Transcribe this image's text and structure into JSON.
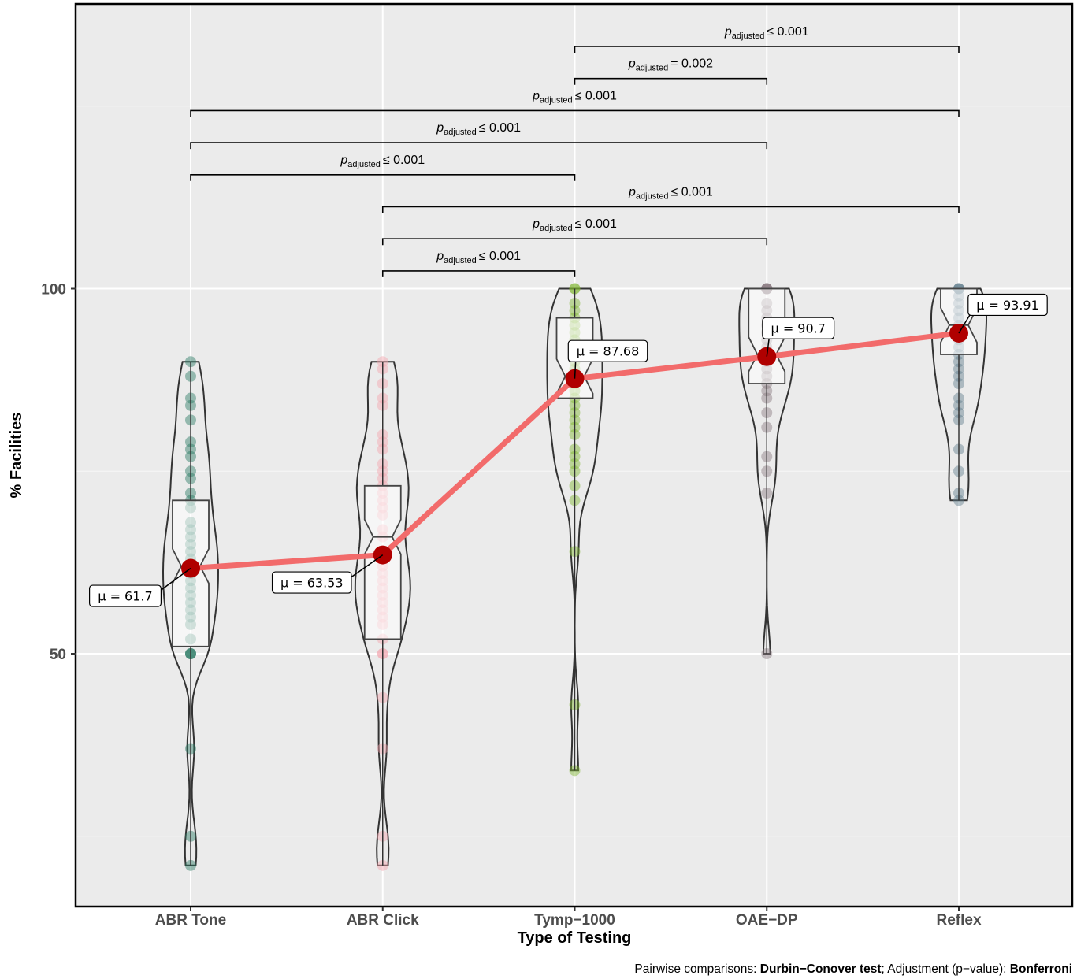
{
  "chart_data": {
    "type": "violin",
    "xlabel": "Type of Testing",
    "ylabel": "% Facilities",
    "y_ticks": [
      50,
      100
    ],
    "ylim": [
      15,
      149
    ],
    "grid": true,
    "categories": [
      "ABR Tone",
      "ABR Click",
      "Tymp−1000",
      "OAE−DP",
      "Reflex"
    ],
    "colors": [
      "#2b7a64",
      "#f3a3ad",
      "#7fb52e",
      "#8a7a80",
      "#5f7d8c"
    ],
    "means": [
      61.7,
      63.53,
      87.68,
      90.7,
      93.91
    ],
    "mean_labels": [
      "μ = 61.7",
      "μ = 63.53",
      "μ = 87.68",
      "μ = 90.7",
      "μ = 93.91"
    ],
    "boxes": [
      {
        "q1": 51,
        "median": 62,
        "q3": 71,
        "min": 21,
        "max": 90
      },
      {
        "q1": 52,
        "median": 66,
        "q3": 73,
        "min": 21,
        "max": 90
      },
      {
        "q1": 85,
        "median": 88,
        "q3": 96,
        "min": 34,
        "max": 100
      },
      {
        "q1": 87,
        "median": 91,
        "q3": 100,
        "min": 50,
        "max": 100
      },
      {
        "q1": 91,
        "median": 95,
        "q3": 100,
        "min": 71,
        "max": 100
      }
    ],
    "points": [
      [
        90,
        88,
        85,
        84,
        82,
        79,
        78,
        77,
        75,
        74,
        72,
        71,
        70,
        68,
        67,
        66,
        65,
        64,
        63,
        62,
        61,
        60,
        59,
        58,
        57,
        56,
        55,
        54,
        52,
        50,
        50,
        50,
        37,
        25,
        21
      ],
      [
        90,
        89,
        87,
        85,
        84,
        80,
        79,
        78,
        76,
        75,
        74,
        73,
        72,
        71,
        70,
        69,
        67,
        66,
        64,
        63,
        62,
        61,
        60,
        59,
        58,
        57,
        56,
        55,
        54,
        52,
        50,
        50,
        44,
        37,
        25,
        21
      ],
      [
        100,
        100,
        98,
        97,
        96,
        95,
        94,
        93,
        92,
        91,
        90,
        89,
        88,
        87,
        86,
        85,
        84,
        83,
        82,
        81,
        80,
        78,
        77,
        76,
        75,
        73,
        71,
        64,
        43,
        34
      ],
      [
        100,
        100,
        100,
        100,
        98,
        97,
        96,
        95,
        94,
        93,
        92,
        91,
        90,
        89,
        88,
        87,
        86,
        85,
        83,
        81,
        77,
        75,
        72,
        50
      ],
      [
        100,
        100,
        100,
        99,
        98,
        97,
        96,
        95,
        94,
        93,
        92,
        91,
        90,
        89,
        88,
        87,
        85,
        84,
        83,
        82,
        78,
        75,
        72,
        71
      ]
    ],
    "comparisons": [
      {
        "from": 2,
        "to": 4,
        "label": "≤ 0.001"
      },
      {
        "from": 2,
        "to": 3,
        "label": "= 0.002"
      },
      {
        "from": 0,
        "to": 4,
        "label": "≤ 0.001"
      },
      {
        "from": 0,
        "to": 3,
        "label": "≤ 0.001"
      },
      {
        "from": 0,
        "to": 2,
        "label": "≤ 0.001"
      },
      {
        "from": 1,
        "to": 4,
        "label": "≤ 0.001"
      },
      {
        "from": 1,
        "to": 3,
        "label": "≤ 0.001"
      },
      {
        "from": 1,
        "to": 2,
        "label": "≤ 0.001"
      }
    ],
    "p_label_main": "p",
    "p_label_sub": "adjusted"
  },
  "caption": {
    "prefix": "Pairwise comparisons: ",
    "test": "Durbin−Conover test",
    "middle": "; Adjustment (p−value): ",
    "adjustment": "Bonferroni"
  }
}
